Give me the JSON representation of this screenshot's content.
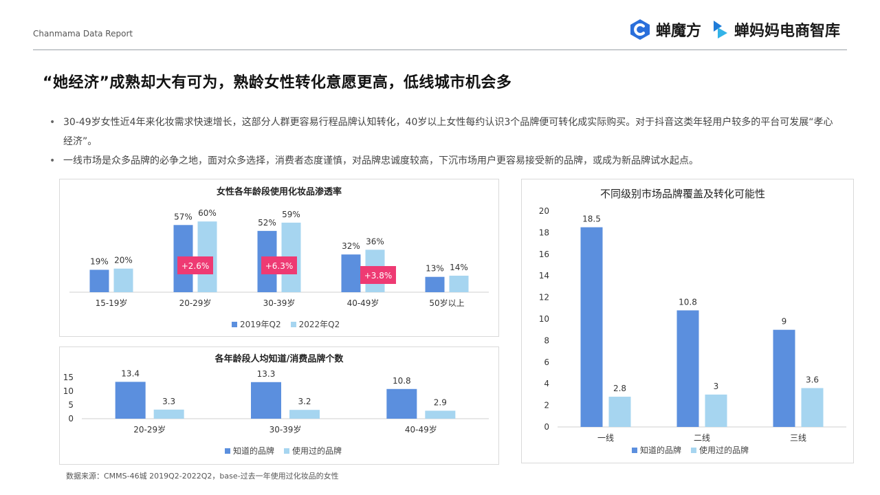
{
  "header": {
    "brand": "Chanmama Data Report",
    "logos": [
      {
        "name": "蝉魔方",
        "icon": "chanmofang-logo-icon",
        "color": "#2a6fdb"
      },
      {
        "name": "蝉妈妈电商智库",
        "icon": "chanmama-logo-icon",
        "color": "#1f7bd8"
      }
    ]
  },
  "title": "“她经济”成熟却大有可为，熟龄女性转化意愿更高，低线城市机会多",
  "bullets": [
    "30-49岁女性近4年来化妆需求快速增长，这部分人群更容易行程品牌认知转化，40岁以上女性每约认识3个品牌便可转化成实际购买。对于抖音这类年轻用户较多的平台可发展“孝心经济”。",
    "一线市场是众多品牌的必争之地，面对众多选择，消费者态度谨慎，对品牌忠诚度较高，下沉市场用户更容易接受新的品牌，或成为新品牌试水起点。"
  ],
  "colors": {
    "dark": "#5b8fde",
    "light": "#a6d5f0",
    "badge": "#ee3a73"
  },
  "footnote": "数据来源：CMMS-46城 2019Q2-2022Q2，base-过去一年使用过化妆品的女性",
  "chart_data": [
    {
      "type": "bar",
      "title": "女性各年龄段使用化妆品渗透率",
      "categories": [
        "15-19岁",
        "20-29岁",
        "30-39岁",
        "40-49岁",
        "50岁以上"
      ],
      "series": [
        {
          "name": "2019年Q2",
          "values": [
            19,
            57,
            52,
            32,
            13
          ],
          "labels": [
            "19%",
            "57%",
            "52%",
            "32%",
            "13%"
          ]
        },
        {
          "name": "2022年Q2",
          "values": [
            20,
            60,
            59,
            36,
            14
          ],
          "labels": [
            "20%",
            "60%",
            "59%",
            "36%",
            "14%"
          ]
        }
      ],
      "annotations": [
        {
          "category": "20-29岁",
          "text": "+2.6%"
        },
        {
          "category": "30-39岁",
          "text": "+6.3%"
        },
        {
          "category": "40-49岁",
          "text": "+3.8%"
        }
      ],
      "ylim": [
        0,
        70
      ],
      "legend": "bottom"
    },
    {
      "type": "bar",
      "title": "各年龄段人均知道/消费品牌个数",
      "categories": [
        "20-29岁",
        "30-39岁",
        "40-49岁"
      ],
      "series": [
        {
          "name": "知道的品牌",
          "values": [
            13.4,
            13.3,
            10.8
          ]
        },
        {
          "name": "使用过的品牌",
          "values": [
            3.3,
            3.2,
            2.9
          ]
        }
      ],
      "yticks": [
        0,
        5,
        10,
        15
      ],
      "ylim": [
        0,
        15
      ],
      "legend": "bottom"
    },
    {
      "type": "bar",
      "title": "不同级别市场品牌覆盖及转化可能性",
      "categories": [
        "一线",
        "二线",
        "三线"
      ],
      "series": [
        {
          "name": "知道的品牌",
          "values": [
            18.5,
            10.8,
            9
          ]
        },
        {
          "name": "使用过的品牌",
          "values": [
            2.8,
            3,
            3.6
          ]
        }
      ],
      "yticks": [
        0,
        2,
        4,
        6,
        8,
        10,
        12,
        14,
        16,
        18,
        20
      ],
      "ylim": [
        0,
        20
      ],
      "legend": "bottom"
    }
  ]
}
